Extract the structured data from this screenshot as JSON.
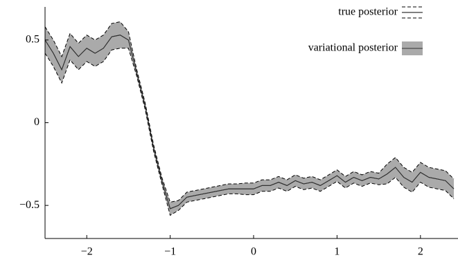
{
  "chart_data": {
    "type": "line",
    "x": [
      -2.5,
      -2.4,
      -2.3,
      -2.2,
      -2.1,
      -2.0,
      -1.9,
      -1.8,
      -1.7,
      -1.6,
      -1.5,
      -1.4,
      -1.3,
      -1.2,
      -1.1,
      -1.0,
      -0.9,
      -0.8,
      -0.7,
      -0.6,
      -0.5,
      -0.4,
      -0.3,
      -0.2,
      -0.1,
      0.0,
      0.1,
      0.2,
      0.3,
      0.4,
      0.5,
      0.6,
      0.7,
      0.8,
      0.9,
      1.0,
      1.1,
      1.2,
      1.3,
      1.4,
      1.5,
      1.6,
      1.7,
      1.8,
      1.9,
      2.0,
      2.1,
      2.2,
      2.3,
      2.4
    ],
    "series": [
      {
        "name": "true posterior",
        "color": "#000000",
        "style": "dashed",
        "values": [
          0.5,
          0.42,
          0.32,
          0.46,
          0.4,
          0.45,
          0.42,
          0.45,
          0.52,
          0.53,
          0.5,
          0.3,
          0.1,
          -0.15,
          -0.35,
          -0.52,
          -0.5,
          -0.45,
          -0.44,
          -0.43,
          -0.42,
          -0.41,
          -0.4,
          -0.4,
          -0.4,
          -0.4,
          -0.38,
          -0.38,
          -0.36,
          -0.38,
          -0.35,
          -0.37,
          -0.36,
          -0.38,
          -0.35,
          -0.32,
          -0.36,
          -0.33,
          -0.35,
          -0.33,
          -0.34,
          -0.31,
          -0.27,
          -0.33,
          -0.36,
          -0.3,
          -0.33,
          -0.34,
          -0.35,
          -0.4
        ],
        "lower": [
          0.42,
          0.34,
          0.24,
          0.38,
          0.32,
          0.37,
          0.34,
          0.37,
          0.44,
          0.45,
          0.45,
          0.28,
          0.08,
          -0.17,
          -0.37,
          -0.56,
          -0.53,
          -0.48,
          -0.47,
          -0.46,
          -0.45,
          -0.44,
          -0.43,
          -0.43,
          -0.435,
          -0.435,
          -0.415,
          -0.415,
          -0.395,
          -0.415,
          -0.385,
          -0.405,
          -0.395,
          -0.415,
          -0.385,
          -0.355,
          -0.395,
          -0.365,
          -0.385,
          -0.365,
          -0.375,
          -0.37,
          -0.33,
          -0.39,
          -0.42,
          -0.36,
          -0.39,
          -0.4,
          -0.41,
          -0.46
        ],
        "upper": [
          0.58,
          0.5,
          0.4,
          0.54,
          0.48,
          0.53,
          0.5,
          0.53,
          0.6,
          0.61,
          0.55,
          0.32,
          0.12,
          -0.13,
          -0.33,
          -0.48,
          -0.47,
          -0.42,
          -0.41,
          -0.4,
          -0.39,
          -0.38,
          -0.37,
          -0.37,
          -0.365,
          -0.365,
          -0.345,
          -0.345,
          -0.325,
          -0.345,
          -0.315,
          -0.335,
          -0.325,
          -0.345,
          -0.315,
          -0.285,
          -0.325,
          -0.295,
          -0.315,
          -0.295,
          -0.305,
          -0.25,
          -0.21,
          -0.27,
          -0.3,
          -0.24,
          -0.27,
          -0.28,
          -0.29,
          -0.34
        ]
      },
      {
        "name": "variational posterior",
        "color": "#aaaaaa",
        "style": "band",
        "values": [
          0.5,
          0.42,
          0.32,
          0.46,
          0.4,
          0.45,
          0.42,
          0.45,
          0.52,
          0.53,
          0.5,
          0.3,
          0.1,
          -0.15,
          -0.35,
          -0.52,
          -0.5,
          -0.45,
          -0.44,
          -0.43,
          -0.42,
          -0.41,
          -0.4,
          -0.4,
          -0.4,
          -0.4,
          -0.38,
          -0.38,
          -0.36,
          -0.38,
          -0.35,
          -0.37,
          -0.36,
          -0.38,
          -0.35,
          -0.32,
          -0.36,
          -0.33,
          -0.35,
          -0.33,
          -0.34,
          -0.31,
          -0.27,
          -0.33,
          -0.36,
          -0.3,
          -0.33,
          -0.34,
          -0.35,
          -0.4
        ],
        "lower": [
          0.42,
          0.34,
          0.24,
          0.38,
          0.32,
          0.37,
          0.34,
          0.37,
          0.44,
          0.45,
          0.45,
          0.28,
          0.08,
          -0.17,
          -0.37,
          -0.56,
          -0.53,
          -0.48,
          -0.47,
          -0.46,
          -0.45,
          -0.44,
          -0.43,
          -0.43,
          -0.435,
          -0.435,
          -0.415,
          -0.415,
          -0.395,
          -0.415,
          -0.385,
          -0.405,
          -0.395,
          -0.415,
          -0.385,
          -0.355,
          -0.395,
          -0.365,
          -0.385,
          -0.365,
          -0.375,
          -0.37,
          -0.33,
          -0.39,
          -0.42,
          -0.36,
          -0.39,
          -0.4,
          -0.41,
          -0.46
        ],
        "upper": [
          0.58,
          0.5,
          0.4,
          0.54,
          0.48,
          0.53,
          0.5,
          0.53,
          0.6,
          0.61,
          0.55,
          0.32,
          0.12,
          -0.13,
          -0.33,
          -0.48,
          -0.47,
          -0.42,
          -0.41,
          -0.4,
          -0.39,
          -0.38,
          -0.37,
          -0.37,
          -0.365,
          -0.365,
          -0.345,
          -0.345,
          -0.325,
          -0.345,
          -0.315,
          -0.335,
          -0.325,
          -0.345,
          -0.315,
          -0.285,
          -0.325,
          -0.295,
          -0.315,
          -0.295,
          -0.305,
          -0.25,
          -0.21,
          -0.27,
          -0.3,
          -0.24,
          -0.27,
          -0.28,
          -0.29,
          -0.34
        ]
      }
    ],
    "xlim": [
      -2.5,
      2.45
    ],
    "ylim": [
      -0.7,
      0.7
    ],
    "xticks": [
      {
        "value": -2,
        "label": "−2"
      },
      {
        "value": -1,
        "label": "−1"
      },
      0,
      1,
      2
    ],
    "yticks": [
      {
        "value": -0.5,
        "label": "−0.5"
      },
      0,
      0.5
    ],
    "legend": "upper-right"
  }
}
